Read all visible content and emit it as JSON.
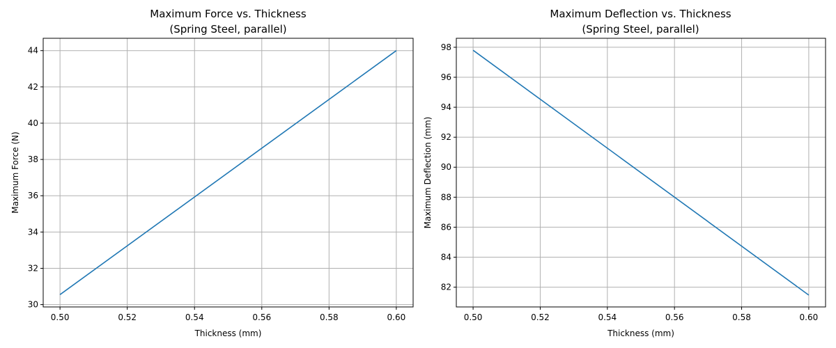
{
  "chart_data": [
    {
      "type": "line",
      "title_line1": "Maximum Force vs. Thickness",
      "title_line2": "(Spring Steel, parallel)",
      "xlabel": "Thickness (mm)",
      "ylabel": "Maximum Force (N)",
      "xlim": [
        0.495,
        0.605
      ],
      "ylim": [
        29.87,
        44.68
      ],
      "xticks": [
        0.5,
        0.52,
        0.54,
        0.56,
        0.58,
        0.6
      ],
      "yticks": [
        30,
        32,
        34,
        36,
        38,
        40,
        42,
        44
      ],
      "grid": true,
      "series": [
        {
          "color": "#1f77b4",
          "x": [
            0.5,
            0.6
          ],
          "y": [
            30.55,
            44.0
          ]
        }
      ]
    },
    {
      "type": "line",
      "title_line1": "Maximum Deflection vs. Thickness",
      "title_line2": "(Spring Steel, parallel)",
      "xlabel": "Thickness (mm)",
      "ylabel": "Maximum Deflection (mm)",
      "xlim": [
        0.495,
        0.605
      ],
      "ylim": [
        80.68,
        98.6
      ],
      "xticks": [
        0.5,
        0.52,
        0.54,
        0.56,
        0.58,
        0.6
      ],
      "yticks": [
        82,
        84,
        86,
        88,
        90,
        92,
        94,
        96,
        98
      ],
      "grid": true,
      "series": [
        {
          "color": "#1f77b4",
          "x": [
            0.5,
            0.6
          ],
          "y": [
            97.8,
            81.47
          ]
        }
      ]
    }
  ]
}
